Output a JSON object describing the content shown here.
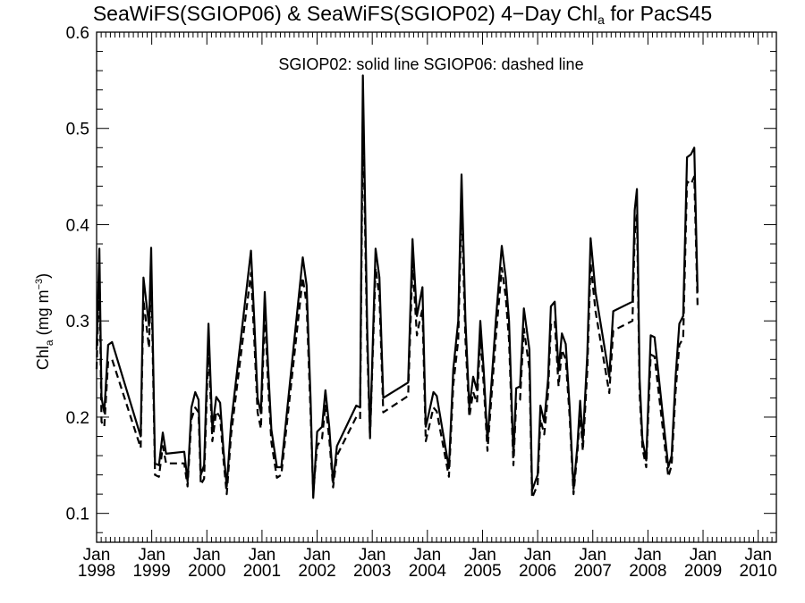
{
  "chart_data": {
    "type": "line",
    "title": {
      "prefix": "SeaWiFS(SGIOP06) & SeaWiFS(SGIOP02) 4−Day Chl",
      "subscript": "a",
      "suffix": " for PacS45"
    },
    "ylabel": {
      "prefix": "Chl",
      "subscript": "a",
      "middle": " (mg m",
      "superscript": "−3",
      "suffix": ")"
    },
    "annotation": "SGIOP02: solid line   SGIOP06: dashed line",
    "xlim": [
      1998.0,
      2010.33
    ],
    "ylim": [
      0.07,
      0.6
    ],
    "yticks": [
      0.1,
      0.2,
      0.3,
      0.4,
      0.5,
      0.6
    ],
    "ytick_labels": [
      "0.1",
      "0.2",
      "0.3",
      "0.4",
      "0.5",
      "0.6"
    ],
    "xticks": [
      {
        "value": 1998,
        "month": "Jan",
        "year": "1998"
      },
      {
        "value": 1999,
        "month": "Jan",
        "year": "1999"
      },
      {
        "value": 2000,
        "month": "Jan",
        "year": "2000"
      },
      {
        "value": 2001,
        "month": "Jan",
        "year": "2001"
      },
      {
        "value": 2002,
        "month": "Jan",
        "year": "2002"
      },
      {
        "value": 2003,
        "month": "Jan",
        "year": "2003"
      },
      {
        "value": 2004,
        "month": "Jan",
        "year": "2004"
      },
      {
        "value": 2005,
        "month": "Jan",
        "year": "2005"
      },
      {
        "value": 2006,
        "month": "Jan",
        "year": "2006"
      },
      {
        "value": 2007,
        "month": "Jan",
        "year": "2007"
      },
      {
        "value": 2008,
        "month": "Jan",
        "year": "2008"
      },
      {
        "value": 2009,
        "month": "Jan",
        "year": "2009"
      },
      {
        "value": 2010,
        "month": "Jan",
        "year": "2010"
      }
    ],
    "grid": false,
    "series": [
      {
        "style": "solid",
        "points": [
          [
            1998.0,
            0.27
          ],
          [
            1998.05,
            0.375
          ],
          [
            1998.09,
            0.22
          ],
          [
            1998.14,
            0.205
          ],
          [
            1998.21,
            0.275
          ],
          [
            1998.28,
            0.278
          ],
          [
            1998.8,
            0.18
          ],
          [
            1998.85,
            0.345
          ],
          [
            1998.95,
            0.295
          ],
          [
            1998.99,
            0.376
          ],
          [
            1999.06,
            0.152
          ],
          [
            1999.13,
            0.15
          ],
          [
            1999.2,
            0.184
          ],
          [
            1999.26,
            0.162
          ],
          [
            1999.59,
            0.164
          ],
          [
            1999.65,
            0.133
          ],
          [
            1999.72,
            0.21
          ],
          [
            1999.79,
            0.226
          ],
          [
            1999.85,
            0.218
          ],
          [
            1999.89,
            0.14
          ],
          [
            1999.95,
            0.15
          ],
          [
            2000.03,
            0.297
          ],
          [
            2000.1,
            0.188
          ],
          [
            2000.17,
            0.221
          ],
          [
            2000.24,
            0.215
          ],
          [
            2000.3,
            0.166
          ],
          [
            2000.36,
            0.128
          ],
          [
            2000.44,
            0.194
          ],
          [
            2000.8,
            0.373
          ],
          [
            2000.86,
            0.3
          ],
          [
            2000.92,
            0.22
          ],
          [
            2000.98,
            0.204
          ],
          [
            2001.05,
            0.33
          ],
          [
            2001.11,
            0.253
          ],
          [
            2001.17,
            0.187
          ],
          [
            2001.27,
            0.148
          ],
          [
            2001.35,
            0.148
          ],
          [
            2001.74,
            0.366
          ],
          [
            2001.81,
            0.337
          ],
          [
            2001.88,
            0.22
          ],
          [
            2001.93,
            0.116
          ],
          [
            2002.0,
            0.185
          ],
          [
            2002.09,
            0.19
          ],
          [
            2002.15,
            0.228
          ],
          [
            2002.22,
            0.19
          ],
          [
            2002.29,
            0.132
          ],
          [
            2002.36,
            0.17
          ],
          [
            2002.71,
            0.212
          ],
          [
            2002.78,
            0.21
          ],
          [
            2002.83,
            0.555
          ],
          [
            2002.91,
            0.29
          ],
          [
            2002.96,
            0.18
          ],
          [
            2003.06,
            0.375
          ],
          [
            2003.13,
            0.345
          ],
          [
            2003.2,
            0.22
          ],
          [
            2003.65,
            0.236
          ],
          [
            2003.73,
            0.385
          ],
          [
            2003.81,
            0.305
          ],
          [
            2003.86,
            0.32
          ],
          [
            2003.91,
            0.335
          ],
          [
            2003.97,
            0.19
          ],
          [
            2004.03,
            0.205
          ],
          [
            2004.11,
            0.226
          ],
          [
            2004.17,
            0.222
          ],
          [
            2004.39,
            0.147
          ],
          [
            2004.47,
            0.25
          ],
          [
            2004.56,
            0.3
          ],
          [
            2004.62,
            0.452
          ],
          [
            2004.69,
            0.3
          ],
          [
            2004.76,
            0.21
          ],
          [
            2004.83,
            0.242
          ],
          [
            2004.9,
            0.228
          ],
          [
            2004.96,
            0.3
          ],
          [
            2005.02,
            0.25
          ],
          [
            2005.09,
            0.175
          ],
          [
            2005.24,
            0.3
          ],
          [
            2005.35,
            0.378
          ],
          [
            2005.42,
            0.345
          ],
          [
            2005.48,
            0.3
          ],
          [
            2005.56,
            0.16
          ],
          [
            2005.61,
            0.23
          ],
          [
            2005.68,
            0.232
          ],
          [
            2005.75,
            0.313
          ],
          [
            2005.85,
            0.27
          ],
          [
            2005.9,
            0.124
          ],
          [
            2006.0,
            0.14
          ],
          [
            2006.05,
            0.212
          ],
          [
            2006.12,
            0.195
          ],
          [
            2006.19,
            0.24
          ],
          [
            2006.24,
            0.315
          ],
          [
            2006.31,
            0.32
          ],
          [
            2006.38,
            0.248
          ],
          [
            2006.44,
            0.287
          ],
          [
            2006.51,
            0.276
          ],
          [
            2006.58,
            0.21
          ],
          [
            2006.65,
            0.125
          ],
          [
            2006.72,
            0.17
          ],
          [
            2006.77,
            0.217
          ],
          [
            2006.82,
            0.175
          ],
          [
            2006.9,
            0.265
          ],
          [
            2006.96,
            0.386
          ],
          [
            2007.05,
            0.33
          ],
          [
            2007.3,
            0.242
          ],
          [
            2007.37,
            0.31
          ],
          [
            2007.72,
            0.32
          ],
          [
            2007.76,
            0.415
          ],
          [
            2007.8,
            0.437
          ],
          [
            2007.85,
            0.24
          ],
          [
            2007.9,
            0.177
          ],
          [
            2007.97,
            0.155
          ],
          [
            2008.05,
            0.285
          ],
          [
            2008.12,
            0.283
          ],
          [
            2008.37,
            0.148
          ],
          [
            2008.43,
            0.16
          ],
          [
            2008.5,
            0.24
          ],
          [
            2008.57,
            0.297
          ],
          [
            2008.64,
            0.305
          ],
          [
            2008.71,
            0.47
          ],
          [
            2008.78,
            0.473
          ],
          [
            2008.84,
            0.48
          ],
          [
            2008.9,
            0.33
          ]
        ]
      },
      {
        "style": "dashed",
        "points": [
          [
            1998.0,
            0.25
          ],
          [
            1998.05,
            0.352
          ],
          [
            1998.09,
            0.195
          ],
          [
            1998.14,
            0.19
          ],
          [
            1998.21,
            0.258
          ],
          [
            1998.28,
            0.26
          ],
          [
            1998.8,
            0.168
          ],
          [
            1998.85,
            0.322
          ],
          [
            1998.95,
            0.272
          ],
          [
            1998.99,
            0.352
          ],
          [
            1999.06,
            0.14
          ],
          [
            1999.13,
            0.138
          ],
          [
            1999.2,
            0.17
          ],
          [
            1999.26,
            0.152
          ],
          [
            1999.59,
            0.152
          ],
          [
            1999.65,
            0.128
          ],
          [
            1999.72,
            0.198
          ],
          [
            1999.79,
            0.21
          ],
          [
            1999.85,
            0.205
          ],
          [
            1999.89,
            0.13
          ],
          [
            1999.95,
            0.136
          ],
          [
            2000.03,
            0.275
          ],
          [
            2000.1,
            0.175
          ],
          [
            2000.17,
            0.206
          ],
          [
            2000.24,
            0.2
          ],
          [
            2000.3,
            0.156
          ],
          [
            2000.36,
            0.12
          ],
          [
            2000.44,
            0.182
          ],
          [
            2000.8,
            0.35
          ],
          [
            2000.86,
            0.28
          ],
          [
            2000.92,
            0.205
          ],
          [
            2000.98,
            0.188
          ],
          [
            2001.05,
            0.31
          ],
          [
            2001.11,
            0.235
          ],
          [
            2001.17,
            0.174
          ],
          [
            2001.27,
            0.137
          ],
          [
            2001.35,
            0.14
          ],
          [
            2001.74,
            0.345
          ],
          [
            2001.81,
            0.317
          ],
          [
            2001.88,
            0.205
          ],
          [
            2001.93,
            0.122
          ],
          [
            2002.0,
            0.17
          ],
          [
            2002.09,
            0.178
          ],
          [
            2002.15,
            0.213
          ],
          [
            2002.22,
            0.178
          ],
          [
            2002.29,
            0.127
          ],
          [
            2002.36,
            0.16
          ],
          [
            2002.71,
            0.2
          ],
          [
            2002.78,
            0.198
          ],
          [
            2002.83,
            0.52
          ],
          [
            2002.91,
            0.272
          ],
          [
            2002.96,
            0.178
          ],
          [
            2003.06,
            0.355
          ],
          [
            2003.13,
            0.325
          ],
          [
            2003.2,
            0.205
          ],
          [
            2003.65,
            0.222
          ],
          [
            2003.73,
            0.36
          ],
          [
            2003.81,
            0.285
          ],
          [
            2003.86,
            0.3
          ],
          [
            2003.91,
            0.312
          ],
          [
            2003.97,
            0.175
          ],
          [
            2004.03,
            0.19
          ],
          [
            2004.11,
            0.21
          ],
          [
            2004.17,
            0.206
          ],
          [
            2004.39,
            0.138
          ],
          [
            2004.47,
            0.234
          ],
          [
            2004.56,
            0.28
          ],
          [
            2004.62,
            0.42
          ],
          [
            2004.69,
            0.28
          ],
          [
            2004.76,
            0.2
          ],
          [
            2004.83,
            0.226
          ],
          [
            2004.9,
            0.215
          ],
          [
            2004.96,
            0.283
          ],
          [
            2005.02,
            0.235
          ],
          [
            2005.09,
            0.165
          ],
          [
            2005.24,
            0.282
          ],
          [
            2005.35,
            0.355
          ],
          [
            2005.42,
            0.325
          ],
          [
            2005.48,
            0.28
          ],
          [
            2005.56,
            0.15
          ],
          [
            2005.61,
            0.215
          ],
          [
            2005.68,
            0.218
          ],
          [
            2005.75,
            0.292
          ],
          [
            2005.85,
            0.25
          ],
          [
            2005.9,
            0.116
          ],
          [
            2006.0,
            0.13
          ],
          [
            2006.05,
            0.198
          ],
          [
            2006.12,
            0.182
          ],
          [
            2006.19,
            0.225
          ],
          [
            2006.24,
            0.296
          ],
          [
            2006.31,
            0.3
          ],
          [
            2006.38,
            0.232
          ],
          [
            2006.44,
            0.27
          ],
          [
            2006.51,
            0.26
          ],
          [
            2006.58,
            0.2
          ],
          [
            2006.65,
            0.12
          ],
          [
            2006.72,
            0.163
          ],
          [
            2006.77,
            0.205
          ],
          [
            2006.82,
            0.165
          ],
          [
            2006.9,
            0.248
          ],
          [
            2006.96,
            0.36
          ],
          [
            2007.05,
            0.31
          ],
          [
            2007.3,
            0.225
          ],
          [
            2007.37,
            0.29
          ],
          [
            2007.72,
            0.3
          ],
          [
            2007.76,
            0.39
          ],
          [
            2007.8,
            0.41
          ],
          [
            2007.85,
            0.225
          ],
          [
            2007.9,
            0.168
          ],
          [
            2007.97,
            0.148
          ],
          [
            2008.05,
            0.265
          ],
          [
            2008.12,
            0.263
          ],
          [
            2008.37,
            0.138
          ],
          [
            2008.43,
            0.15
          ],
          [
            2008.5,
            0.225
          ],
          [
            2008.57,
            0.275
          ],
          [
            2008.64,
            0.282
          ],
          [
            2008.71,
            0.445
          ],
          [
            2008.78,
            0.442
          ],
          [
            2008.84,
            0.45
          ],
          [
            2008.9,
            0.315
          ]
        ]
      }
    ]
  }
}
